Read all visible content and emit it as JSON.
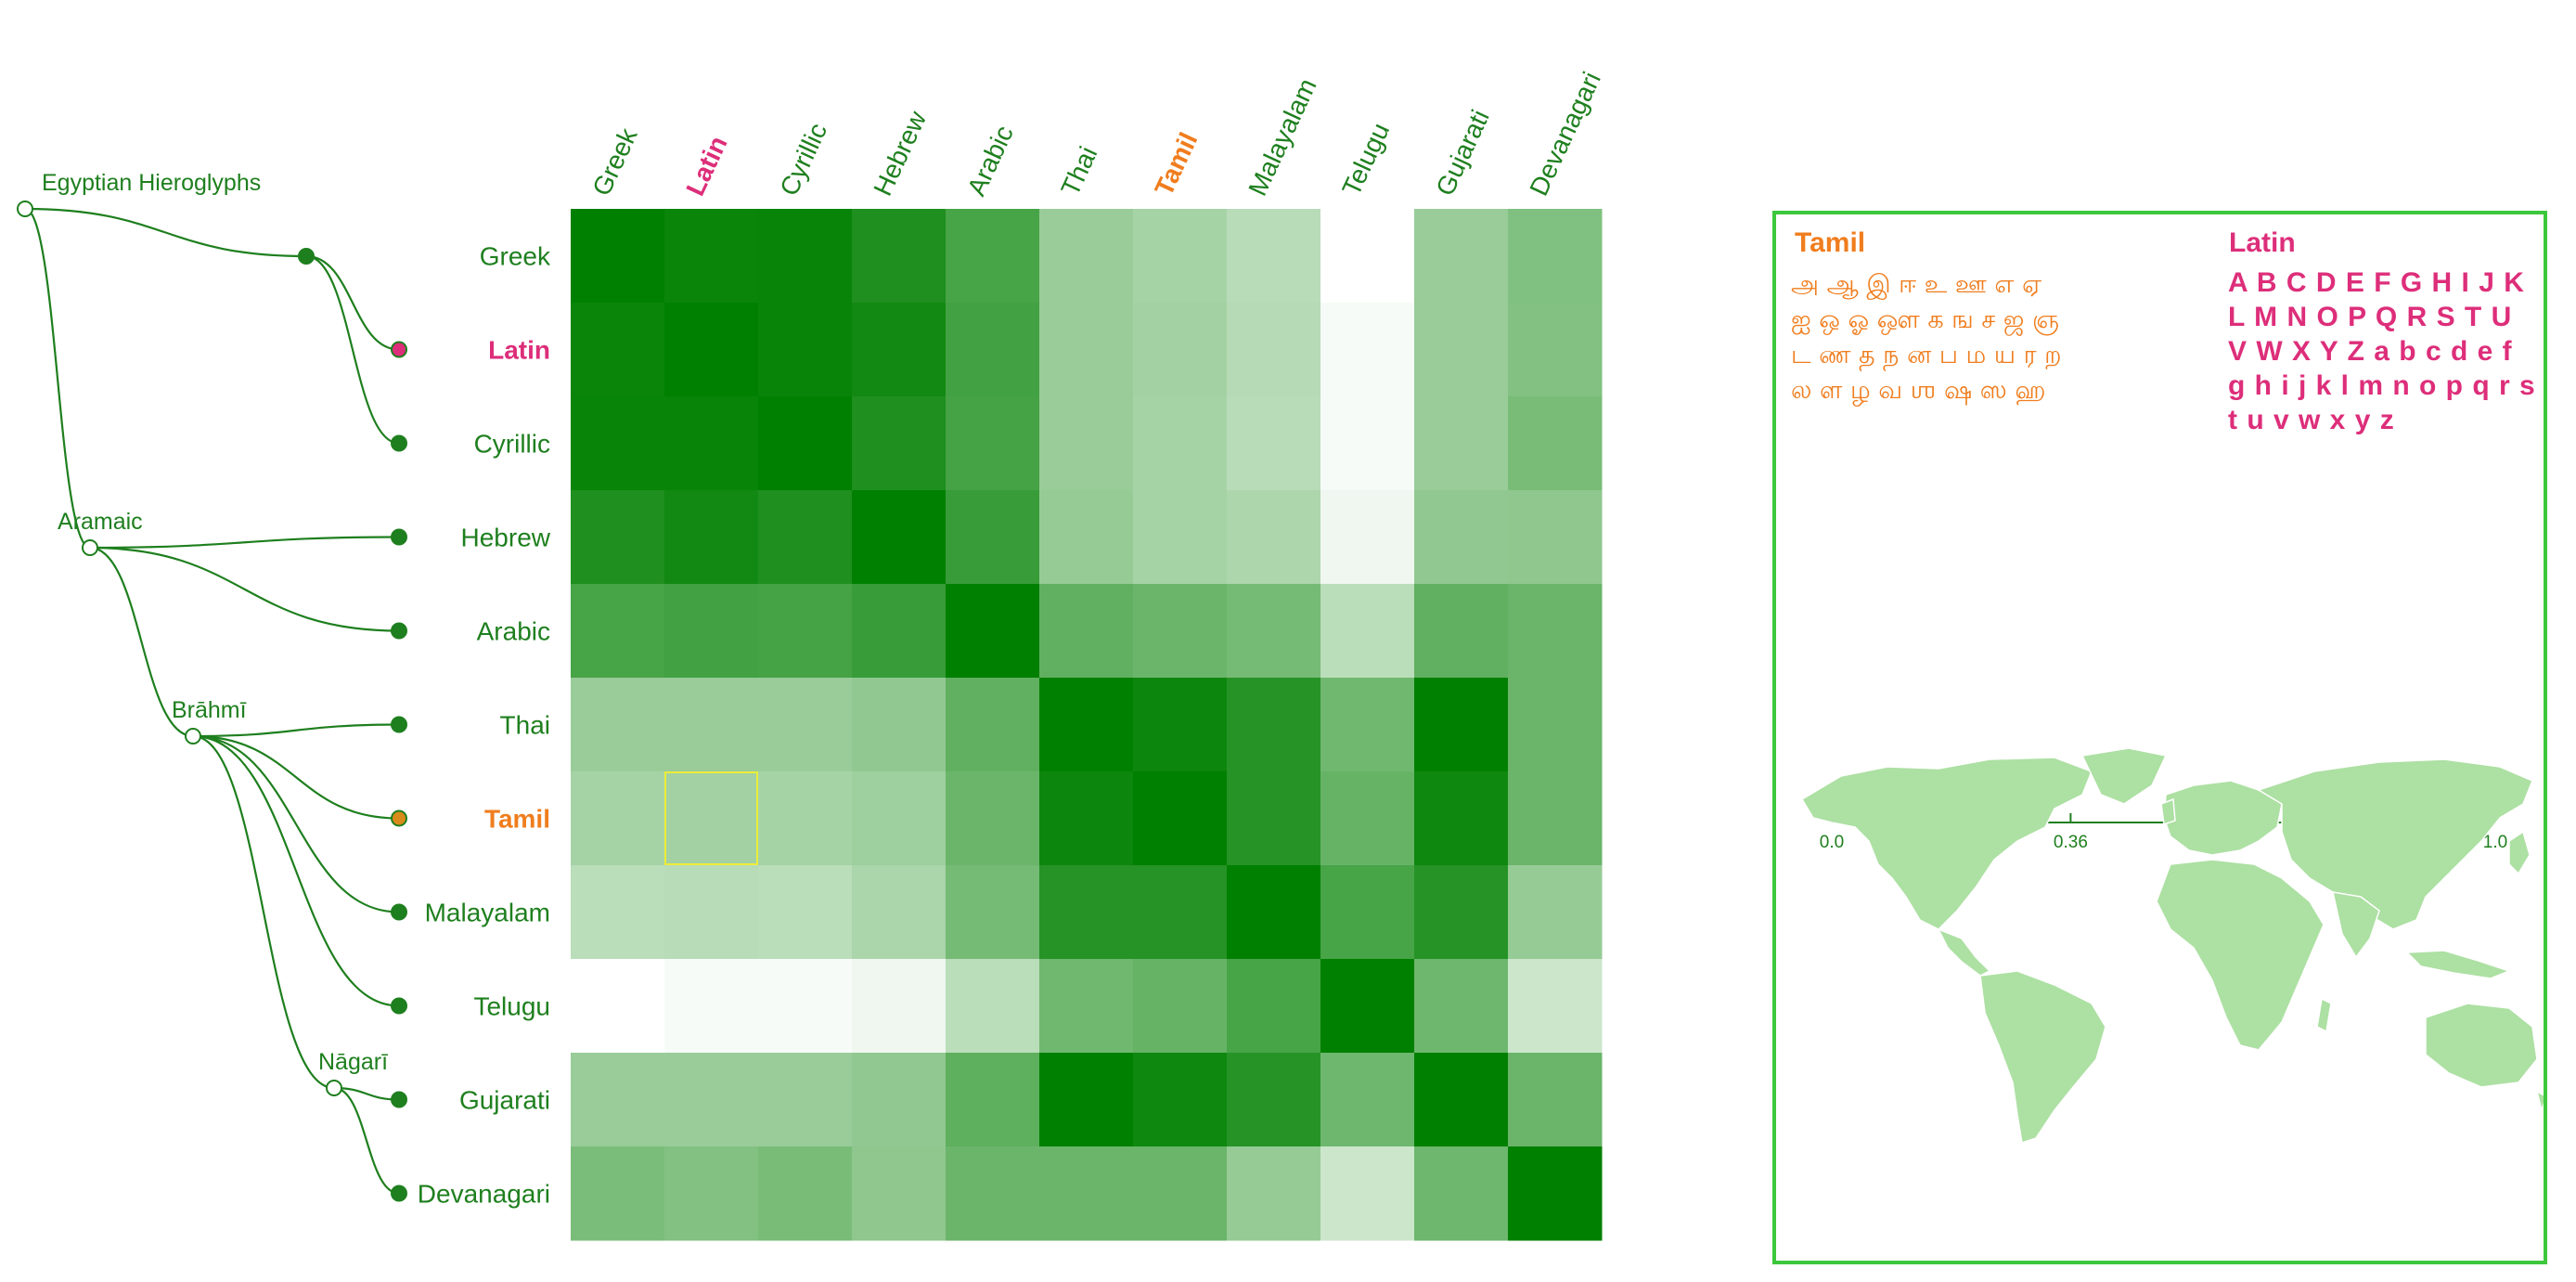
{
  "colors": {
    "tree": "#1e7f1e",
    "highlight_latin": "#dd2e7a",
    "highlight_tamil": "#f07d1e",
    "panel_border": "#3cc83c",
    "map_fill": "#ade0a3",
    "selected_cell": "#eded3a"
  },
  "tree": {
    "internal_nodes": [
      "Egyptian Hieroglyphs",
      "Aramaic",
      "Brāhmī",
      "Nāgarī"
    ]
  },
  "chart_data": {
    "type": "heatmap",
    "title": "",
    "rows": [
      "Greek",
      "Latin",
      "Cyrillic",
      "Hebrew",
      "Arabic",
      "Thai",
      "Tamil",
      "Malayalam",
      "Telugu",
      "Gujarati",
      "Devanagari"
    ],
    "columns": [
      "Greek",
      "Latin",
      "Cyrillic",
      "Hebrew",
      "Arabic",
      "Thai",
      "Tamil",
      "Malayalam",
      "Telugu",
      "Gujarati",
      "Devanagari"
    ],
    "highlighted_row": "Tamil",
    "highlighted_column": "Latin",
    "selected_cell": {
      "row": "Tamil",
      "column": "Latin"
    },
    "values": [
      [
        1.0,
        0.96,
        0.97,
        0.88,
        0.72,
        0.4,
        0.35,
        0.28,
        0.0,
        0.4,
        0.5
      ],
      [
        0.96,
        1.0,
        0.97,
        0.93,
        0.74,
        0.4,
        0.36,
        0.29,
        0.03,
        0.4,
        0.49
      ],
      [
        0.97,
        0.97,
        1.0,
        0.88,
        0.73,
        0.4,
        0.35,
        0.28,
        0.03,
        0.4,
        0.53
      ],
      [
        0.88,
        0.93,
        0.88,
        1.0,
        0.78,
        0.41,
        0.35,
        0.32,
        0.06,
        0.43,
        0.44
      ],
      [
        0.72,
        0.74,
        0.73,
        0.78,
        1.0,
        0.62,
        0.58,
        0.54,
        0.27,
        0.62,
        0.58
      ],
      [
        0.4,
        0.4,
        0.4,
        0.43,
        0.62,
        1.0,
        0.95,
        0.85,
        0.56,
        1.0,
        0.58
      ],
      [
        0.35,
        0.36,
        0.35,
        0.38,
        0.58,
        0.95,
        1.0,
        0.85,
        0.6,
        0.94,
        0.58
      ],
      [
        0.27,
        0.28,
        0.27,
        0.33,
        0.54,
        0.85,
        0.85,
        1.0,
        0.72,
        0.85,
        0.41
      ],
      [
        0.0,
        0.03,
        0.03,
        0.06,
        0.27,
        0.56,
        0.6,
        0.72,
        1.0,
        0.57,
        0.2
      ],
      [
        0.4,
        0.4,
        0.4,
        0.43,
        0.63,
        1.0,
        0.94,
        0.85,
        0.57,
        1.0,
        0.58
      ],
      [
        0.52,
        0.49,
        0.53,
        0.44,
        0.58,
        0.58,
        0.58,
        0.41,
        0.2,
        0.57,
        1.0
      ]
    ],
    "color_scale": {
      "min": 0.0,
      "mid": 0.36,
      "max": 1.0,
      "min_color": "#ffffff",
      "max_color": "#008000"
    },
    "axis_ticks": [
      "0.0",
      "0.36",
      "1.0"
    ]
  },
  "panel": {
    "tamil": {
      "title": "Tamil",
      "lines": [
        "அ ஆ இ ஈ உ ஊ எ ஏ",
        "ஐ ஒ ஓ ஔ க ங ச ஜ ஞ",
        "ட ண த ந ன ப ம ய ர ற",
        "ல ள ழ வ ஶ ஷ ஸ ஹ"
      ]
    },
    "latin": {
      "title": "Latin",
      "lines": [
        "A B C D E F G H I J K",
        "L M N O P Q R S T U",
        "V W X Y Z a b c d e f",
        "g h i j k l m n o p q r s",
        "t u v w x y z"
      ]
    },
    "map_label": "world-map"
  }
}
